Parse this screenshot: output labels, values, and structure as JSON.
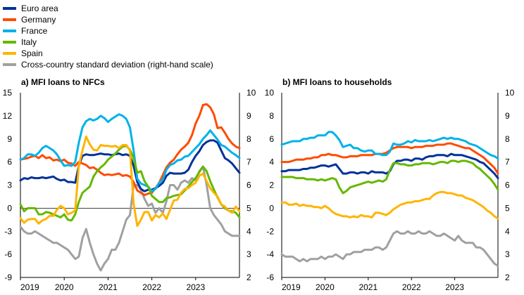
{
  "legend": [
    {
      "name": "Euro area",
      "color": "#003299"
    },
    {
      "name": "Germany",
      "color": "#ff4b00"
    },
    {
      "name": "France",
      "color": "#00b1ea"
    },
    {
      "name": "Italy",
      "color": "#65b800"
    },
    {
      "name": "Spain",
      "color": "#ffb400"
    },
    {
      "name": "Cross-country standard deviation (right-hand scale)",
      "color": "#a0a0a0"
    }
  ],
  "chart_data": [
    {
      "type": "line",
      "title": "a) MFI loans to NFCs",
      "x_start": "2019-01",
      "x_ticks": [
        "2019",
        "2020",
        "2021",
        "2022",
        "2023"
      ],
      "ylim": [
        -9,
        15
      ],
      "y_ticks": [
        -9,
        -6,
        -3,
        0,
        3,
        6,
        9,
        12,
        15
      ],
      "y2lim": [
        2,
        10
      ],
      "y2_ticks": [
        2,
        3,
        4,
        5,
        6,
        7,
        8,
        9,
        10
      ],
      "zero_line": true,
      "series": [
        {
          "name": "Euro area",
          "axis": "left",
          "values": [
            3.6,
            3.9,
            3.8,
            4.0,
            3.9,
            3.9,
            4.0,
            3.9,
            4.0,
            4.1,
            3.8,
            3.6,
            3.7,
            3.4,
            3.4,
            3.3,
            5.5,
            6.8,
            7.0,
            6.9,
            6.9,
            7.0,
            7.1,
            7.0,
            7.0,
            6.9,
            7.0,
            7.1,
            6.9,
            7.0,
            6.8,
            5.5,
            3.4,
            2.5,
            2.2,
            2.4,
            2.4,
            2.6,
            2.9,
            3.3,
            4.2,
            4.6,
            4.5,
            4.5,
            4.5,
            4.6,
            5.0,
            6.0,
            6.8,
            7.4,
            8.2,
            8.6,
            8.8,
            8.8,
            8.5,
            7.5,
            6.5,
            6.2,
            5.8,
            5.2,
            4.6
          ]
        },
        {
          "name": "Germany",
          "axis": "left",
          "values": [
            6.3,
            6.4,
            6.5,
            6.7,
            6.8,
            6.5,
            6.9,
            6.5,
            6.6,
            6.2,
            6.3,
            6.1,
            6.3,
            5.9,
            5.8,
            5.5,
            6.0,
            5.8,
            5.6,
            5.2,
            5.3,
            5.0,
            4.6,
            4.3,
            4.4,
            4.3,
            4.4,
            4.5,
            4.2,
            4.3,
            4.1,
            3.4,
            2.3,
            2.0,
            1.7,
            1.9,
            2.0,
            2.6,
            3.3,
            4.3,
            5.3,
            5.9,
            6.3,
            7.0,
            7.6,
            8.0,
            8.5,
            9.5,
            11.0,
            12.0,
            13.4,
            13.5,
            13.1,
            12.2,
            10.4,
            10.5,
            9.8,
            9.0,
            8.4,
            8.0,
            7.8
          ]
        },
        {
          "name": "France",
          "axis": "left",
          "values": [
            6.3,
            6.5,
            7.0,
            7.0,
            6.8,
            7.2,
            7.8,
            8.1,
            7.8,
            7.5,
            7.0,
            6.2,
            5.5,
            5.6,
            5.5,
            6.0,
            8.5,
            10.5,
            11.3,
            11.6,
            11.4,
            11.6,
            12.0,
            11.7,
            11.2,
            11.6,
            11.9,
            12.2,
            12.0,
            11.6,
            10.5,
            7.5,
            3.8,
            3.2,
            3.0,
            2.8,
            2.2,
            2.5,
            3.3,
            3.7,
            5.0,
            5.6,
            5.8,
            6.2,
            6.3,
            6.7,
            6.8,
            7.3,
            7.8,
            8.3,
            9.0,
            9.5,
            10.1,
            9.5,
            8.9,
            8.2,
            8.0,
            7.6,
            7.2,
            6.9,
            6.5
          ]
        },
        {
          "name": "Italy",
          "axis": "left",
          "values": [
            0.5,
            -0.4,
            0.0,
            0.0,
            0.0,
            -0.8,
            -0.8,
            -0.5,
            -0.6,
            -0.8,
            -1.0,
            -1.2,
            -0.8,
            -1.5,
            -1.6,
            -0.8,
            0.8,
            2.0,
            2.4,
            2.8,
            4.1,
            4.8,
            5.3,
            5.7,
            6.3,
            6.7,
            7.1,
            7.6,
            8.0,
            8.1,
            7.6,
            6.5,
            4.6,
            4.8,
            3.5,
            2.8,
            1.6,
            1.2,
            0.8,
            0.8,
            1.3,
            1.4,
            1.6,
            1.7,
            1.8,
            2.3,
            2.8,
            3.4,
            3.9,
            4.7,
            5.4,
            4.8,
            3.5,
            2.4,
            1.4,
            0.5,
            0.0,
            -0.3,
            -0.4,
            -0.6,
            -1.2
          ]
        },
        {
          "name": "Spain",
          "axis": "left",
          "values": [
            -1.3,
            -1.9,
            -1.5,
            -1.4,
            -1.4,
            -2.0,
            -1.6,
            -1.4,
            -1.0,
            -1.0,
            -0.2,
            0.3,
            0.0,
            -0.8,
            -0.6,
            -0.3,
            5.5,
            7.5,
            9.3,
            8.3,
            7.6,
            7.5,
            8.2,
            8.1,
            8.1,
            8.0,
            8.1,
            7.8,
            8.2,
            8.2,
            7.5,
            0.6,
            -2.3,
            -1.5,
            -0.5,
            -0.5,
            -1.6,
            -0.9,
            -1.2,
            -0.7,
            -1.4,
            -0.2,
            1.0,
            1.1,
            2.0,
            2.5,
            2.6,
            3.0,
            3.3,
            4.2,
            4.5,
            3.5,
            2.6,
            2.0,
            1.5,
            0.5,
            0.2,
            -0.3,
            -0.6,
            0.2,
            -0.4
          ]
        },
        {
          "name": "Cross-country standard deviation (right-hand scale)",
          "axis": "right",
          "values": [
            4.2,
            4.0,
            3.9,
            3.9,
            4.0,
            3.9,
            3.8,
            3.7,
            3.6,
            3.5,
            3.5,
            3.4,
            3.3,
            3.2,
            3.0,
            2.8,
            2.9,
            3.7,
            4.1,
            3.5,
            3.0,
            2.6,
            2.3,
            2.6,
            2.8,
            3.2,
            3.2,
            3.5,
            4.0,
            4.5,
            4.7,
            6.0,
            6.0,
            5.8,
            5.4,
            5.1,
            5.2,
            4.8,
            5.0,
            4.8,
            5.3,
            6.0,
            6.0,
            5.8,
            6.1,
            6.2,
            6.1,
            6.3,
            6.2,
            6.6,
            6.8,
            6.0,
            5.0,
            4.7,
            4.5,
            4.3,
            4.0,
            3.9,
            3.8,
            3.8,
            3.8
          ]
        }
      ]
    },
    {
      "type": "line",
      "title": "b) MFI loans to households",
      "x_start": "2019-01",
      "x_ticks": [
        "2019",
        "2020",
        "2021",
        "2022",
        "2023"
      ],
      "ylim": [
        -6,
        10
      ],
      "y_ticks": [
        -6,
        -4,
        -2,
        0,
        2,
        4,
        6,
        8,
        10
      ],
      "y2lim": [
        2,
        10
      ],
      "y2_ticks": [
        2,
        3,
        4,
        5,
        6,
        7,
        8,
        9,
        10
      ],
      "zero_line": false,
      "series": [
        {
          "name": "Euro area",
          "axis": "left",
          "values": [
            3.2,
            3.2,
            3.3,
            3.3,
            3.3,
            3.3,
            3.4,
            3.4,
            3.5,
            3.5,
            3.6,
            3.7,
            3.7,
            3.6,
            3.7,
            3.8,
            3.4,
            3.0,
            3.0,
            3.1,
            3.1,
            3.0,
            3.1,
            3.1,
            3.0,
            3.2,
            3.1,
            3.1,
            3.1,
            3.0,
            3.2,
            3.8,
            4.1,
            4.1,
            4.2,
            4.2,
            4.1,
            4.3,
            4.3,
            4.2,
            4.4,
            4.5,
            4.5,
            4.6,
            4.6,
            4.6,
            4.5,
            4.7,
            4.6,
            4.6,
            4.6,
            4.5,
            4.4,
            4.3,
            4.2,
            4.0,
            3.9,
            3.6,
            3.3,
            3.0,
            2.6
          ]
        },
        {
          "name": "Germany",
          "axis": "left",
          "values": [
            4.0,
            4.0,
            4.0,
            4.1,
            4.2,
            4.2,
            4.2,
            4.3,
            4.3,
            4.4,
            4.4,
            4.6,
            4.6,
            4.7,
            4.6,
            4.6,
            4.5,
            4.4,
            4.4,
            4.5,
            4.5,
            4.5,
            4.6,
            4.6,
            4.6,
            4.6,
            4.7,
            4.7,
            4.7,
            4.8,
            5.0,
            5.2,
            5.3,
            5.3,
            5.3,
            5.3,
            5.2,
            5.3,
            5.3,
            5.3,
            5.4,
            5.4,
            5.4,
            5.5,
            5.5,
            5.5,
            5.6,
            5.6,
            5.5,
            5.4,
            5.3,
            5.2,
            5.2,
            5.0,
            4.8,
            4.6,
            4.4,
            4.1,
            3.8,
            3.5,
            3.0
          ]
        },
        {
          "name": "France",
          "axis": "left",
          "values": [
            5.5,
            5.6,
            5.7,
            5.8,
            5.8,
            5.8,
            6.0,
            6.0,
            6.1,
            6.1,
            6.3,
            6.3,
            6.3,
            6.6,
            6.6,
            6.3,
            5.9,
            5.3,
            5.4,
            5.5,
            5.2,
            5.2,
            5.0,
            4.9,
            5.0,
            5.0,
            4.7,
            4.7,
            4.6,
            4.6,
            4.9,
            5.6,
            5.5,
            5.5,
            5.6,
            5.8,
            5.7,
            5.9,
            5.8,
            5.8,
            5.8,
            5.9,
            5.8,
            5.9,
            6.0,
            6.1,
            6.0,
            6.1,
            6.0,
            6.0,
            5.9,
            5.8,
            5.6,
            5.5,
            5.4,
            5.2,
            5.0,
            4.8,
            4.6,
            4.5,
            4.3
          ]
        },
        {
          "name": "Italy",
          "axis": "left",
          "values": [
            2.7,
            2.7,
            2.7,
            2.7,
            2.6,
            2.6,
            2.6,
            2.5,
            2.5,
            2.5,
            2.4,
            2.5,
            2.4,
            2.5,
            2.6,
            2.5,
            1.8,
            1.3,
            1.5,
            1.8,
            1.9,
            2.0,
            2.1,
            2.2,
            2.3,
            2.2,
            2.3,
            2.4,
            2.3,
            2.5,
            3.3,
            3.9,
            3.9,
            3.8,
            3.8,
            3.7,
            3.7,
            3.8,
            3.8,
            3.9,
            3.9,
            3.9,
            3.8,
            3.9,
            4.0,
            4.0,
            3.9,
            4.1,
            4.1,
            4.0,
            4.1,
            4.1,
            4.0,
            3.9,
            3.6,
            3.4,
            3.1,
            2.8,
            2.5,
            2.1,
            1.6
          ]
        },
        {
          "name": "Spain",
          "axis": "left",
          "values": [
            0.5,
            0.5,
            0.3,
            0.3,
            0.4,
            0.2,
            0.3,
            0.2,
            0.2,
            0.1,
            0.1,
            0.0,
            0.2,
            0.0,
            -0.3,
            -0.5,
            -0.6,
            -0.7,
            -0.7,
            -0.8,
            -0.7,
            -0.8,
            -0.6,
            -0.7,
            -0.7,
            -0.8,
            -0.4,
            -0.4,
            -0.5,
            -0.6,
            -0.4,
            -0.1,
            0.1,
            0.3,
            0.4,
            0.5,
            0.5,
            0.6,
            0.6,
            0.7,
            0.8,
            0.8,
            1.1,
            1.3,
            1.4,
            1.4,
            1.3,
            1.3,
            1.2,
            1.1,
            1.1,
            0.9,
            0.8,
            0.7,
            0.5,
            0.3,
            0.1,
            -0.2,
            -0.4,
            -0.7,
            -0.9
          ]
        },
        {
          "name": "Cross-country standard deviation (right-hand scale)",
          "axis": "right",
          "values": [
            3.0,
            2.9,
            2.9,
            2.9,
            2.8,
            2.7,
            2.8,
            2.7,
            2.8,
            2.8,
            2.8,
            2.9,
            2.8,
            2.9,
            2.9,
            3.0,
            2.9,
            2.8,
            3.0,
            3.0,
            3.1,
            3.1,
            3.1,
            3.2,
            3.2,
            3.2,
            3.3,
            3.3,
            3.2,
            3.3,
            3.6,
            3.9,
            4.0,
            3.9,
            3.9,
            4.0,
            3.9,
            3.9,
            4.0,
            3.9,
            3.9,
            4.0,
            3.9,
            3.8,
            3.8,
            3.9,
            3.8,
            3.7,
            3.6,
            3.8,
            3.6,
            3.5,
            3.5,
            3.5,
            3.3,
            3.3,
            3.2,
            3.0,
            2.8,
            2.6,
            2.5
          ]
        }
      ]
    }
  ]
}
